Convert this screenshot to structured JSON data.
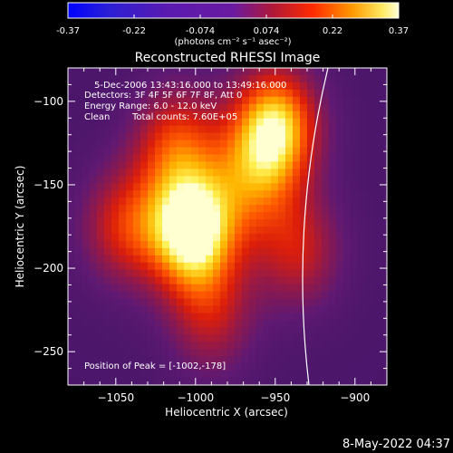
{
  "colorbar": {
    "ticks": [
      "-0.37",
      "-0.22",
      "-0.074",
      "0.074",
      "0.22",
      "0.37"
    ],
    "units_label": "(photons cm⁻² s⁻¹ asec⁻²)",
    "range": [
      -0.37,
      0.37
    ]
  },
  "chart_data": {
    "type": "heatmap",
    "title": "Reconstructed RHESSI Image",
    "xlabel": "Heliocentric X (arcsec)",
    "ylabel": "Heliocentric Y (arcsec)",
    "xlim": [
      -1080,
      -880
    ],
    "ylim": [
      -270,
      -80
    ],
    "x_ticks": [
      -1050,
      -1000,
      -950,
      -900
    ],
    "y_ticks": [
      -250,
      -200,
      -150,
      -100
    ],
    "x_tick_labels": [
      "−1050",
      "−1000",
      "−950",
      "−900"
    ],
    "y_tick_labels": [
      "−250",
      "−200",
      "−150",
      "−100"
    ],
    "annotations": [
      "5-Dec-2006 13:43:16.000 to 13:49:16.000",
      "Detectors: 3F 4F 5F 6F 7F 8F, Att 0",
      "Energy Range: 6.0 - 12.0 keV",
      "Clean",
      "Total counts: 7.60E+05",
      "Position of Peak = [-1002,-178]"
    ],
    "peak": [
      -1002,
      -178
    ],
    "sources": [
      {
        "x": -1002,
        "y": -178,
        "amp": 1.0
      },
      {
        "x": -950,
        "y": -115,
        "amp": 0.9
      },
      {
        "x": -1012,
        "y": -125,
        "amp": 0.55
      },
      {
        "x": -1045,
        "y": -175,
        "amp": 0.5
      },
      {
        "x": -990,
        "y": -230,
        "amp": 0.4
      },
      {
        "x": -935,
        "y": -190,
        "amp": 0.45
      },
      {
        "x": -965,
        "y": -150,
        "amp": 0.4
      }
    ]
  },
  "timestamp": "8-May-2022 04:37"
}
